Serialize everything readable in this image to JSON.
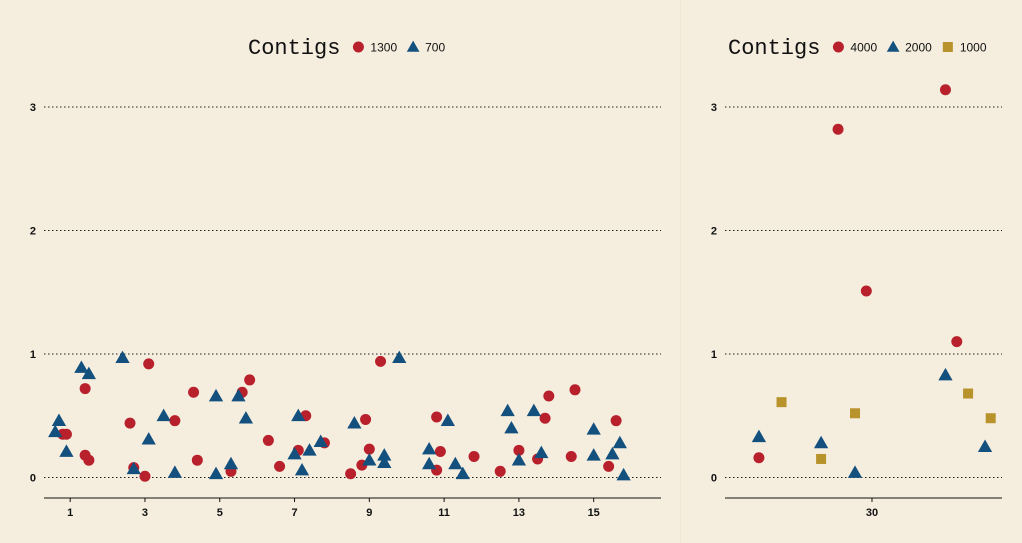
{
  "chart_data": [
    {
      "type": "scatter",
      "title": "Contigs",
      "xlabel": "",
      "ylabel": "",
      "xlim": [
        0.3,
        16.8
      ],
      "ylim": [
        -0.15,
        3.3
      ],
      "xticks": [
        1,
        3,
        5,
        7,
        9,
        11,
        13,
        15
      ],
      "yticks": [
        0,
        1,
        2,
        3
      ],
      "grid_y": true,
      "legend_position": "top",
      "series": [
        {
          "name": "1300",
          "color": "#b8202c",
          "marker": "circle",
          "points": [
            [
              0.8,
              0.35
            ],
            [
              0.9,
              0.35
            ],
            [
              1.4,
              0.72
            ],
            [
              1.4,
              0.18
            ],
            [
              1.5,
              0.14
            ],
            [
              2.6,
              0.44
            ],
            [
              2.7,
              0.08
            ],
            [
              3.0,
              0.01
            ],
            [
              3.1,
              0.92
            ],
            [
              3.8,
              0.46
            ],
            [
              4.3,
              0.69
            ],
            [
              4.4,
              0.14
            ],
            [
              5.3,
              0.05
            ],
            [
              5.6,
              0.69
            ],
            [
              5.8,
              0.79
            ],
            [
              6.3,
              0.3
            ],
            [
              6.6,
              0.09
            ],
            [
              7.1,
              0.22
            ],
            [
              7.3,
              0.5
            ],
            [
              7.8,
              0.28
            ],
            [
              8.5,
              0.03
            ],
            [
              8.8,
              0.1
            ],
            [
              8.9,
              0.47
            ],
            [
              9.0,
              0.23
            ],
            [
              9.3,
              0.94
            ],
            [
              10.8,
              0.06
            ],
            [
              10.8,
              0.49
            ],
            [
              10.9,
              0.21
            ],
            [
              11.8,
              0.17
            ],
            [
              12.5,
              0.05
            ],
            [
              13.0,
              0.22
            ],
            [
              13.5,
              0.15
            ],
            [
              13.7,
              0.48
            ],
            [
              13.8,
              0.66
            ],
            [
              14.4,
              0.17
            ],
            [
              14.5,
              0.71
            ],
            [
              15.4,
              0.09
            ],
            [
              15.6,
              0.46
            ]
          ]
        },
        {
          "name": "700",
          "color": "#13507e",
          "marker": "triangle",
          "points": [
            [
              0.6,
              0.37
            ],
            [
              0.7,
              0.46
            ],
            [
              0.9,
              0.21
            ],
            [
              1.3,
              0.89
            ],
            [
              1.5,
              0.84
            ],
            [
              2.4,
              0.97
            ],
            [
              2.7,
              0.07
            ],
            [
              3.1,
              0.31
            ],
            [
              3.5,
              0.5
            ],
            [
              3.8,
              0.04
            ],
            [
              4.9,
              0.66
            ],
            [
              4.9,
              0.03
            ],
            [
              5.3,
              0.11
            ],
            [
              5.5,
              0.66
            ],
            [
              5.7,
              0.48
            ],
            [
              7.0,
              0.19
            ],
            [
              7.1,
              0.5
            ],
            [
              7.2,
              0.06
            ],
            [
              7.4,
              0.22
            ],
            [
              7.7,
              0.29
            ],
            [
              8.6,
              0.44
            ],
            [
              9.0,
              0.14
            ],
            [
              9.4,
              0.18
            ],
            [
              9.4,
              0.12
            ],
            [
              9.8,
              0.97
            ],
            [
              10.6,
              0.23
            ],
            [
              10.6,
              0.11
            ],
            [
              11.1,
              0.46
            ],
            [
              11.3,
              0.11
            ],
            [
              11.5,
              0.03
            ],
            [
              12.7,
              0.54
            ],
            [
              12.8,
              0.4
            ],
            [
              13.0,
              0.14
            ],
            [
              13.4,
              0.54
            ],
            [
              13.6,
              0.2
            ],
            [
              15.0,
              0.39
            ],
            [
              15.0,
              0.18
            ],
            [
              15.5,
              0.19
            ],
            [
              15.7,
              0.28
            ],
            [
              15.8,
              0.02
            ]
          ]
        }
      ]
    },
    {
      "type": "scatter",
      "title": "Contigs",
      "xlabel": "",
      "ylabel": "",
      "xlim": [
        4,
        53
      ],
      "ylim": [
        -0.15,
        3.3
      ],
      "xticks": [
        30
      ],
      "yticks": [
        0,
        1,
        2,
        3
      ],
      "grid_y": true,
      "legend_position": "top",
      "series": [
        {
          "name": "4000",
          "color": "#b8202c",
          "marker": "circle",
          "points": [
            [
              10,
              0.16
            ],
            [
              24,
              2.82
            ],
            [
              29,
              1.51
            ],
            [
              43,
              3.14
            ],
            [
              45,
              1.1
            ]
          ]
        },
        {
          "name": "2000",
          "color": "#13507e",
          "marker": "triangle",
          "points": [
            [
              10,
              0.33
            ],
            [
              21,
              0.28
            ],
            [
              27,
              0.04
            ],
            [
              43,
              0.83
            ],
            [
              50,
              0.25
            ]
          ]
        },
        {
          "name": "1000",
          "color": "#b8922a",
          "marker": "square",
          "points": [
            [
              14,
              0.61
            ],
            [
              21,
              0.15
            ],
            [
              27,
              0.52
            ],
            [
              47,
              0.68
            ],
            [
              51,
              0.48
            ]
          ]
        }
      ]
    }
  ]
}
